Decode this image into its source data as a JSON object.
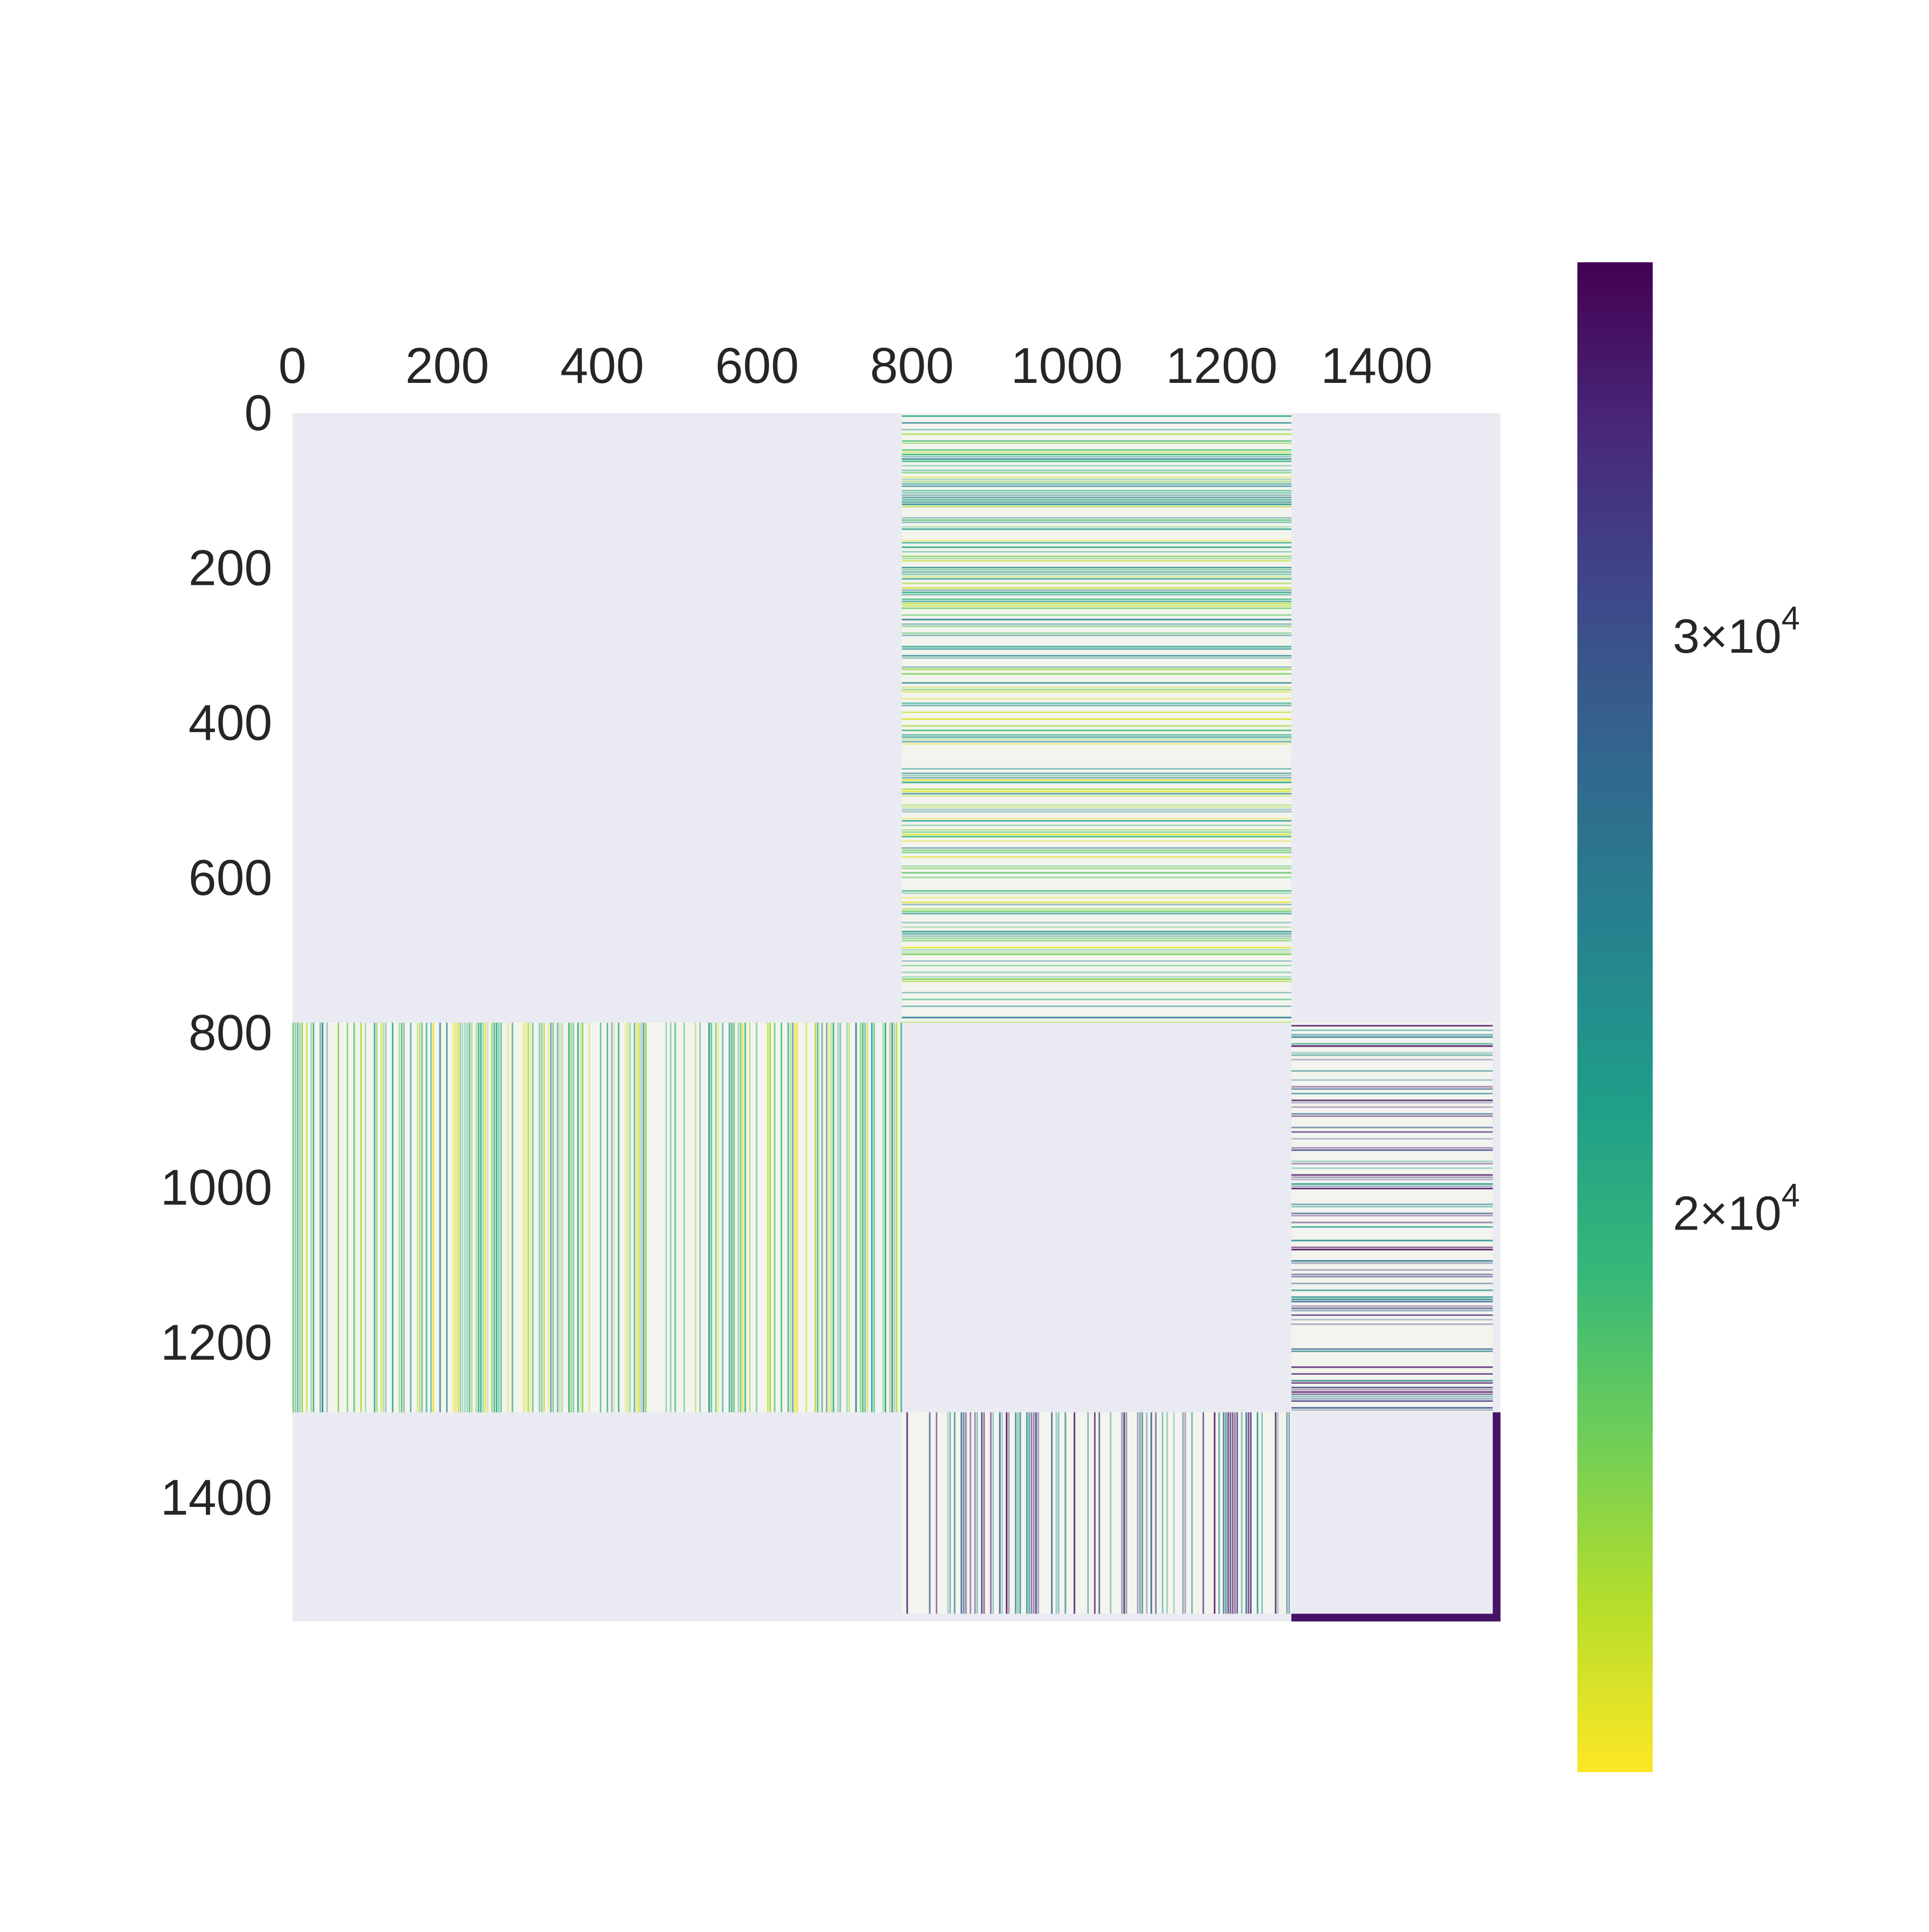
{
  "chart_data": {
    "type": "heatmap",
    "title": "",
    "xlabel": "",
    "ylabel": "",
    "matrix_size": 1560,
    "x_ticks": [
      0,
      200,
      400,
      600,
      800,
      1000,
      1200,
      1400
    ],
    "y_ticks": [
      0,
      200,
      400,
      600,
      800,
      1000,
      1200,
      1400
    ],
    "x_tick_position": "top",
    "y_axis_inverted": true,
    "grid": false,
    "background_color": "#eaeaf2",
    "colormap": "viridis_r",
    "colorbar": {
      "scale": "log",
      "position": "right",
      "min": 13500,
      "max": 39000,
      "ticks": [
        {
          "value": 20000,
          "mantissa": "2",
          "base": "10",
          "exponent": "4"
        },
        {
          "value": 30000,
          "mantissa": "3",
          "base": "10",
          "exponent": "4"
        }
      ]
    },
    "blocks": [
      {
        "rows": [
          0,
          787
        ],
        "cols": [
          787,
          1290
        ],
        "texture": "rows",
        "intensity": 0.32,
        "density": 0.55
      },
      {
        "rows": [
          787,
          1290
        ],
        "cols": [
          0,
          787
        ],
        "texture": "cols",
        "intensity": 0.32,
        "density": 0.55
      },
      {
        "rows": [
          787,
          1290
        ],
        "cols": [
          1290,
          1550
        ],
        "texture": "rows",
        "intensity": 0.72,
        "density": 0.38
      },
      {
        "rows": [
          1290,
          1550
        ],
        "cols": [
          787,
          1290
        ],
        "texture": "cols",
        "intensity": 0.72,
        "density": 0.38
      },
      {
        "rows": [
          1290,
          1560
        ],
        "cols": [
          1550,
          1560
        ],
        "texture": "solid",
        "intensity": 0.95,
        "density": 0.9
      },
      {
        "rows": [
          1550,
          1560
        ],
        "cols": [
          1290,
          1560
        ],
        "texture": "solid",
        "intensity": 0.95,
        "density": 0.9
      }
    ]
  }
}
